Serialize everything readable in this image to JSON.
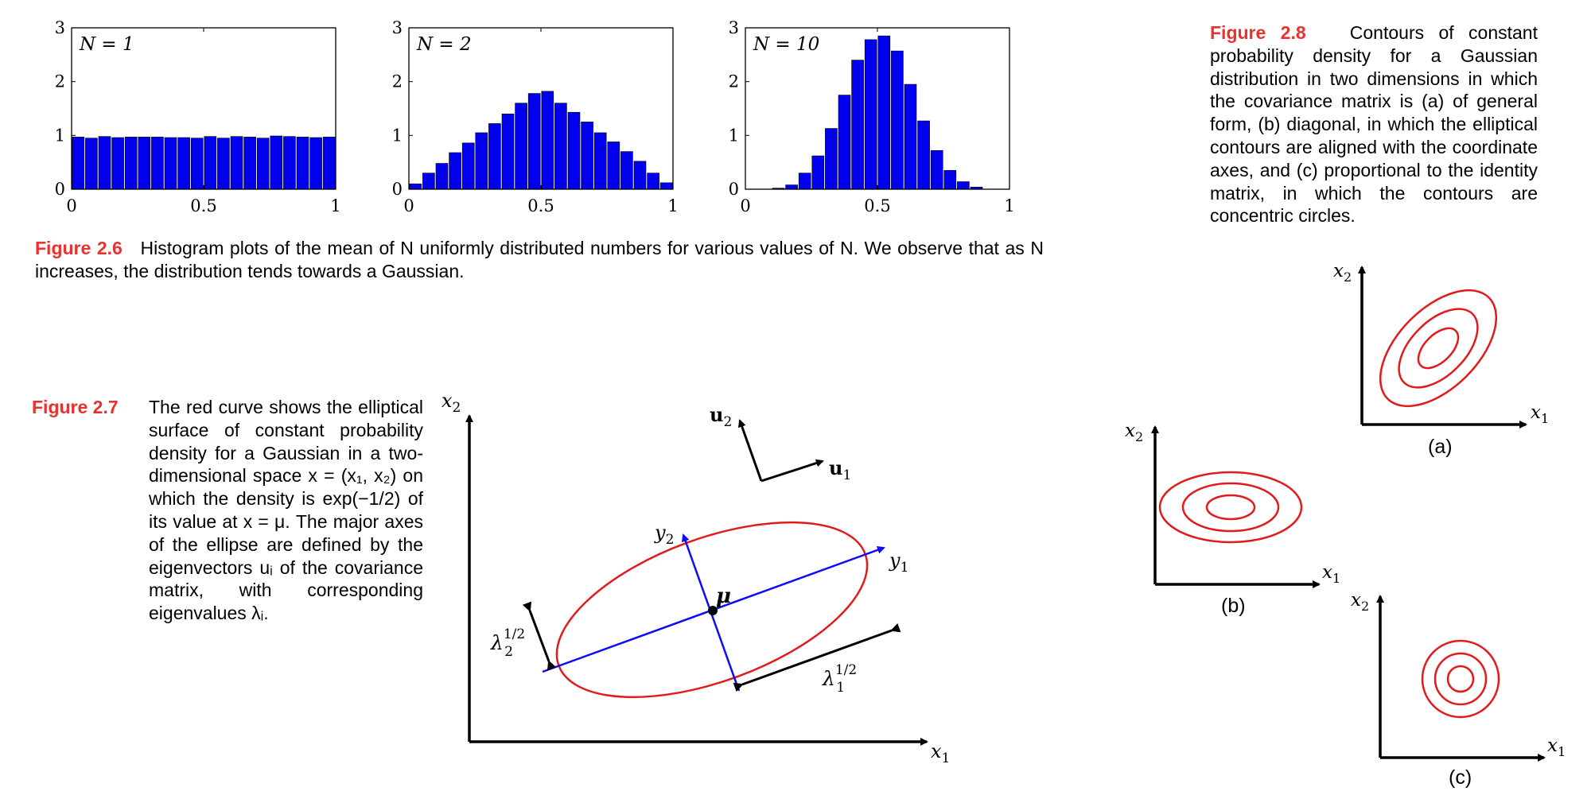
{
  "colors": {
    "bar": "#0000ee",
    "contour": "#e31a1c",
    "eigen_axis": "#0a0aff",
    "figure_label": "#e8322e",
    "axis": "#000000"
  },
  "chart_data": [
    {
      "type": "bar",
      "panel_label": "N = 1",
      "x": [
        0.025,
        0.075,
        0.125,
        0.175,
        0.225,
        0.275,
        0.325,
        0.375,
        0.425,
        0.475,
        0.525,
        0.575,
        0.625,
        0.675,
        0.725,
        0.775,
        0.825,
        0.875,
        0.925,
        0.975
      ],
      "values": [
        0.97,
        0.95,
        0.98,
        0.96,
        0.97,
        0.97,
        0.97,
        0.96,
        0.96,
        0.95,
        0.98,
        0.95,
        0.98,
        0.97,
        0.95,
        0.99,
        0.98,
        0.97,
        0.96,
        0.97
      ],
      "bar_width": 0.05,
      "xlim": [
        0,
        1
      ],
      "ylim": [
        0,
        3
      ],
      "xticks": [
        "0",
        "0.5",
        "1"
      ],
      "yticks": [
        "0",
        "1",
        "2",
        "3"
      ]
    },
    {
      "type": "bar",
      "panel_label": "N = 2",
      "x": [
        0.025,
        0.075,
        0.125,
        0.175,
        0.225,
        0.275,
        0.325,
        0.375,
        0.425,
        0.475,
        0.525,
        0.575,
        0.625,
        0.675,
        0.725,
        0.775,
        0.825,
        0.875,
        0.925,
        0.975
      ],
      "values": [
        0.1,
        0.3,
        0.48,
        0.68,
        0.86,
        1.05,
        1.22,
        1.4,
        1.6,
        1.78,
        1.82,
        1.6,
        1.43,
        1.25,
        1.05,
        0.88,
        0.7,
        0.52,
        0.3,
        0.12
      ],
      "bar_width": 0.05,
      "xlim": [
        0,
        1
      ],
      "ylim": [
        0,
        3
      ],
      "xticks": [
        "0",
        "0.5",
        "1"
      ],
      "yticks": [
        "0",
        "1",
        "2",
        "3"
      ]
    },
    {
      "type": "bar",
      "panel_label": "N = 10",
      "x": [
        0.125,
        0.175,
        0.225,
        0.275,
        0.325,
        0.375,
        0.425,
        0.475,
        0.525,
        0.575,
        0.625,
        0.675,
        0.725,
        0.775,
        0.825,
        0.875
      ],
      "values": [
        0.02,
        0.08,
        0.3,
        0.62,
        1.13,
        1.75,
        2.4,
        2.78,
        2.85,
        2.57,
        1.95,
        1.27,
        0.72,
        0.35,
        0.14,
        0.04
      ],
      "bar_width": 0.05,
      "xlim": [
        0,
        1
      ],
      "ylim": [
        0,
        3
      ],
      "xticks": [
        "0",
        "0.5",
        "1"
      ],
      "yticks": [
        "0",
        "1",
        "2",
        "3"
      ]
    }
  ],
  "figure_2_6": {
    "label": "Figure 2.6",
    "caption": "Histogram plots of the mean of N uniformly distributed numbers for various values of N.  We observe that as N increases, the distribution tends towards a Gaussian."
  },
  "figure_2_7": {
    "label": "Figure 2.7",
    "caption": "The red curve shows the elliptical surface of constant probability density for a Gaussian in a two-dimensional space x = (x₁, x₂) on which the density is exp(−1/2) of its value at x = μ.  The major axes of the ellipse are defined by the eigenvectors uᵢ of the covariance matrix, with corresponding eigenvalues λᵢ.",
    "labels": {
      "x1": "x",
      "x1_sub": "1",
      "x2": "x",
      "x2_sub": "2",
      "u1": "u",
      "u1_sub": "1",
      "u2": "u",
      "u2_sub": "2",
      "y1": "y",
      "y1_sub": "1",
      "y2": "y",
      "y2_sub": "2",
      "mu": "μ",
      "lambda1": "λ",
      "lambda1_sup": "1/2",
      "lambda1_sub": "1",
      "lambda2": "λ",
      "lambda2_sup": "1/2",
      "lambda2_sub": "2"
    }
  },
  "figure_2_8": {
    "label": "Figure 2.8",
    "caption": "Contours of constant probability density for a Gaussian distribution in two dimensions in which the covariance matrix is (a) of general form, (b) diagonal, in which the elliptical contours are aligned with the coordinate axes, and (c) proportional to the identity matrix, in which the contours are concentric circles.",
    "panels": [
      {
        "tag": "(a)",
        "x1": "x",
        "x1_sub": "1",
        "x2": "x",
        "x2_sub": "2"
      },
      {
        "tag": "(b)",
        "x1": "x",
        "x1_sub": "1",
        "x2": "x",
        "x2_sub": "2"
      },
      {
        "tag": "(c)",
        "x1": "x",
        "x1_sub": "1",
        "x2": "x",
        "x2_sub": "2"
      }
    ]
  }
}
